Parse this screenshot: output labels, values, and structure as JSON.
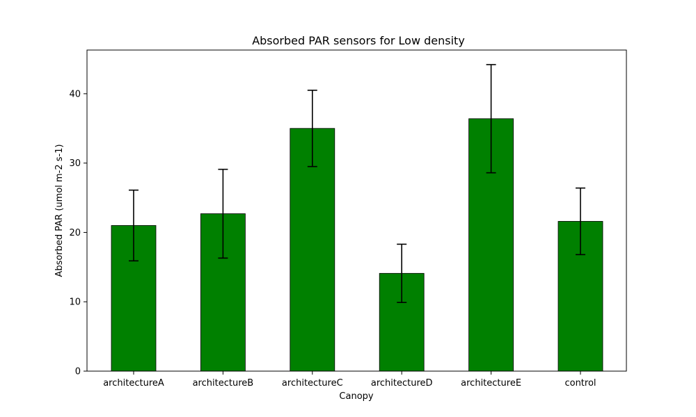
{
  "chart_data": {
    "type": "bar",
    "title": "Absorbed PAR sensors for Low density",
    "xlabel": "Canopy",
    "ylabel": "Absorbed PAR (umol m-2 s-1)",
    "categories": [
      "architectureA",
      "architectureB",
      "architectureC",
      "architectureD",
      "architectureE",
      "control"
    ],
    "values": [
      21.0,
      22.7,
      35.0,
      14.1,
      36.4,
      21.6
    ],
    "errors": [
      5.1,
      6.4,
      5.5,
      4.2,
      7.8,
      4.8
    ],
    "ylim": [
      0,
      46.3
    ],
    "yticks": [
      0,
      10,
      20,
      30,
      40
    ],
    "bar_color": "#008000",
    "grid": false
  }
}
